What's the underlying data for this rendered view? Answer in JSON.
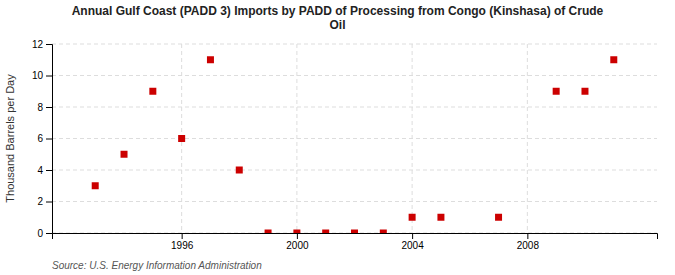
{
  "chart_data": {
    "type": "scatter",
    "title": "Annual Gulf Coast (PADD 3) Imports by PADD of Processing from Congo (Kinshasa) of Crude\nOil",
    "y_label": "Thousand Barrels per Day",
    "annotations": [
      "Source: U.S. Energy Information Administration"
    ],
    "x": [
      1993,
      1994,
      1995,
      1996,
      1997,
      1998,
      1999,
      2000,
      2001,
      2002,
      2003,
      2004,
      2005,
      2007,
      2009,
      2010,
      2011
    ],
    "values": [
      3,
      5,
      9,
      6,
      11,
      4,
      0,
      0,
      0,
      0,
      0,
      1,
      1,
      1,
      9,
      9,
      11
    ],
    "color": "#cc0000",
    "marker": "square",
    "xlim": [
      1991.5,
      2012.5
    ],
    "ylim": [
      0,
      12
    ],
    "xticks": [
      1996,
      2000,
      2004,
      2008
    ],
    "yticks": [
      0,
      2,
      4,
      6,
      8,
      10,
      12
    ],
    "grid": true
  }
}
